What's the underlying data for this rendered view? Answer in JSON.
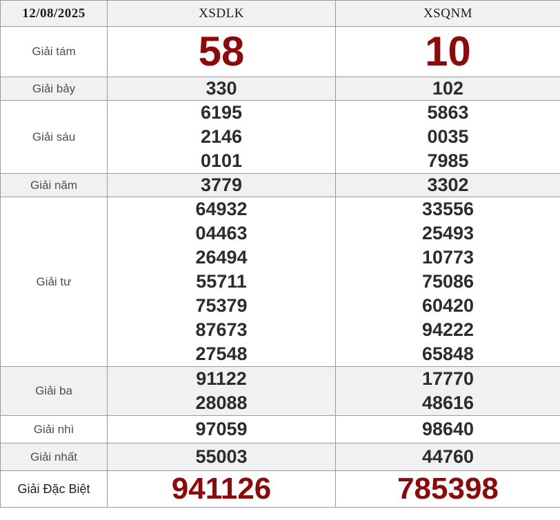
{
  "header": {
    "date": "12/08/2025",
    "station1": "XSDLK",
    "station2": "XSQNM"
  },
  "colors": {
    "accent_red": "#8c0a0a",
    "number_dark": "#2e2b2b",
    "label_gray": "#4d4d4d",
    "row_alt_bg": "#f1f1f1",
    "border": "#999999"
  },
  "rows": [
    {
      "label": "Giải tám",
      "type": "eighth",
      "xsdlk": [
        "58"
      ],
      "xsqnm": [
        "10"
      ]
    },
    {
      "label": "Giải bảy",
      "type": "seventh",
      "xsdlk": [
        "330"
      ],
      "xsqnm": [
        "102"
      ]
    },
    {
      "label": "Giải sáu",
      "type": "sixth",
      "xsdlk": [
        "6195",
        "2146",
        "0101"
      ],
      "xsqnm": [
        "5863",
        "0035",
        "7985"
      ]
    },
    {
      "label": "Giải năm",
      "type": "fifth",
      "xsdlk": [
        "3779"
      ],
      "xsqnm": [
        "3302"
      ]
    },
    {
      "label": "Giải tư",
      "type": "fourth",
      "xsdlk": [
        "64932",
        "04463",
        "26494",
        "55711",
        "75379",
        "87673",
        "27548"
      ],
      "xsqnm": [
        "33556",
        "25493",
        "10773",
        "75086",
        "60420",
        "94222",
        "65848"
      ]
    },
    {
      "label": "Giải ba",
      "type": "third",
      "xsdlk": [
        "91122",
        "28088"
      ],
      "xsqnm": [
        "17770",
        "48616"
      ]
    },
    {
      "label": "Giải nhì",
      "type": "second",
      "xsdlk": [
        "97059"
      ],
      "xsqnm": [
        "98640"
      ]
    },
    {
      "label": "Giải nhất",
      "type": "first",
      "xsdlk": [
        "55003"
      ],
      "xsqnm": [
        "44760"
      ]
    },
    {
      "label": "Giải Đặc Biệt",
      "type": "special",
      "xsdlk": [
        "941126"
      ],
      "xsqnm": [
        "785398"
      ]
    }
  ]
}
